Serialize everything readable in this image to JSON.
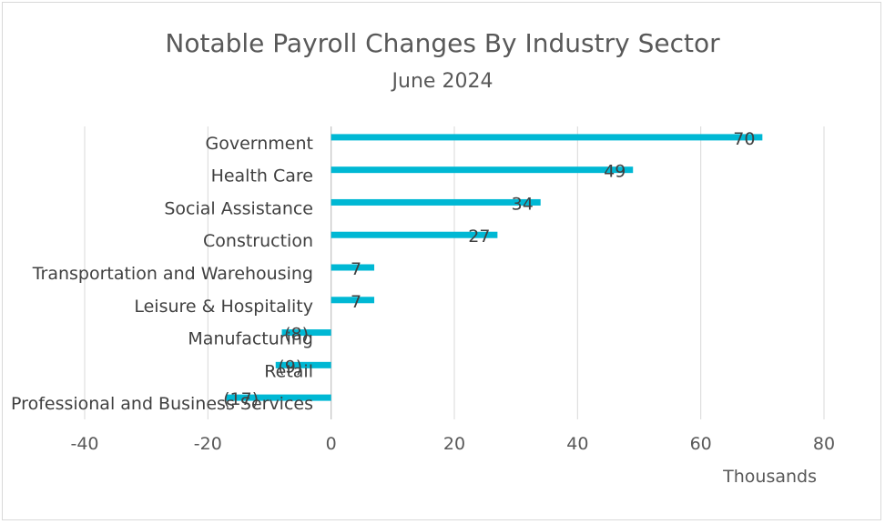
{
  "chart_data": {
    "type": "bar",
    "orientation": "horizontal",
    "title": "Notable Payroll Changes By Industry Sector",
    "subtitle": "June 2024",
    "xlabel": "Thousands",
    "ylabel": "",
    "xlim": [
      -40,
      80
    ],
    "xticks": [
      -40,
      -20,
      0,
      20,
      40,
      60,
      80
    ],
    "grid": true,
    "legend": "none",
    "bar_color": "#00b8d4",
    "categories": [
      "Government",
      "Health Care",
      "Social Assistance",
      "Construction",
      "Transportation and Warehousing",
      "Leisure & Hospitality",
      "Manufacturing",
      "Retail",
      "Professional and Business Services"
    ],
    "values": [
      70,
      49,
      34,
      27,
      7,
      7,
      -8,
      -9,
      -17
    ],
    "data_labels": [
      "70",
      "49",
      "34",
      "27",
      "7",
      "7",
      "(8)",
      "(9)",
      "(17)"
    ]
  }
}
